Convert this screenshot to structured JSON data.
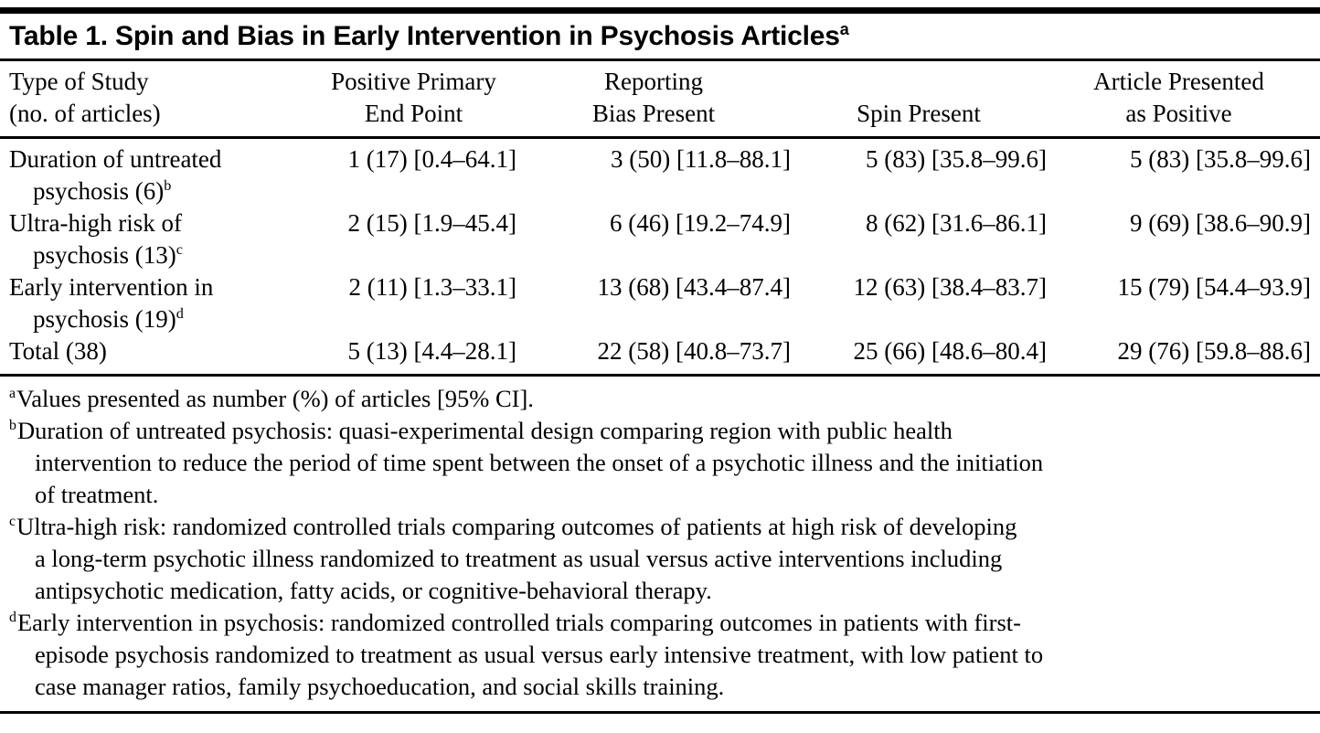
{
  "colors": {
    "text": "#000000",
    "background": "#ffffff",
    "rule": "#000000"
  },
  "table": {
    "title": "Table 1. Spin and Bias in Early Intervention in Psychosis Articles",
    "title_superscript": "a",
    "header": {
      "columns": [
        {
          "lines": [
            "Type of Study",
            "(no. of articles)"
          ]
        },
        {
          "lines": [
            "Positive Primary",
            "End Point"
          ]
        },
        {
          "lines": [
            "Reporting",
            "Bias Present"
          ]
        },
        {
          "lines": [
            "Spin Present"
          ]
        },
        {
          "lines": [
            "Article Presented",
            "as Positive"
          ]
        }
      ]
    },
    "rows": [
      {
        "study_lines": [
          "Duration of untreated",
          "psychosis (6)"
        ],
        "study_superscript": "b",
        "values": [
          "1 (17) [0.4–64.1]",
          "3 (50) [11.8–88.1]",
          "5 (83) [35.8–99.6]",
          "5 (83) [35.8–99.6]"
        ]
      },
      {
        "study_lines": [
          "Ultra-high risk of",
          "psychosis (13)"
        ],
        "study_superscript": "c",
        "values": [
          "2 (15) [1.9–45.4]",
          "6 (46) [19.2–74.9]",
          "8 (62) [31.6–86.1]",
          "9 (69) [38.6–90.9]"
        ]
      },
      {
        "study_lines": [
          "Early intervention in",
          "psychosis (19)"
        ],
        "study_superscript": "d",
        "values": [
          "2 (11) [1.3–33.1]",
          "13 (68) [43.4–87.4]",
          "12 (63) [38.4–83.7]",
          "15 (79) [54.4–93.9]"
        ]
      },
      {
        "study_lines": [
          "Total (38)"
        ],
        "values": [
          "5 (13) [4.4–28.1]",
          "22 (58) [40.8–73.7]",
          "25 (66) [48.6–80.4]",
          "29 (76) [59.8–88.6]"
        ]
      }
    ],
    "footnotes": [
      {
        "marker": "a",
        "lines": [
          "Values presented as number (%) of articles [95% CI]."
        ]
      },
      {
        "marker": "b",
        "lines": [
          "Duration of untreated psychosis: quasi-experimental design comparing region with public health",
          "intervention to reduce the period of time spent between the onset of a psychotic illness and the initiation",
          "of treatment."
        ]
      },
      {
        "marker": "c",
        "lines": [
          "Ultra-high risk: randomized controlled trials comparing outcomes of patients at high risk of developing",
          "a long-term psychotic illness randomized to treatment as usual versus active interventions including",
          "antipsychotic medication, fatty acids, or cognitive-behavioral therapy."
        ]
      },
      {
        "marker": "d",
        "lines": [
          "Early intervention in psychosis: randomized controlled trials comparing outcomes in patients with first-",
          "episode psychosis randomized to treatment as usual versus early intensive treatment, with low patient to",
          "case manager ratios, family psychoeducation, and social skills training."
        ]
      }
    ]
  }
}
